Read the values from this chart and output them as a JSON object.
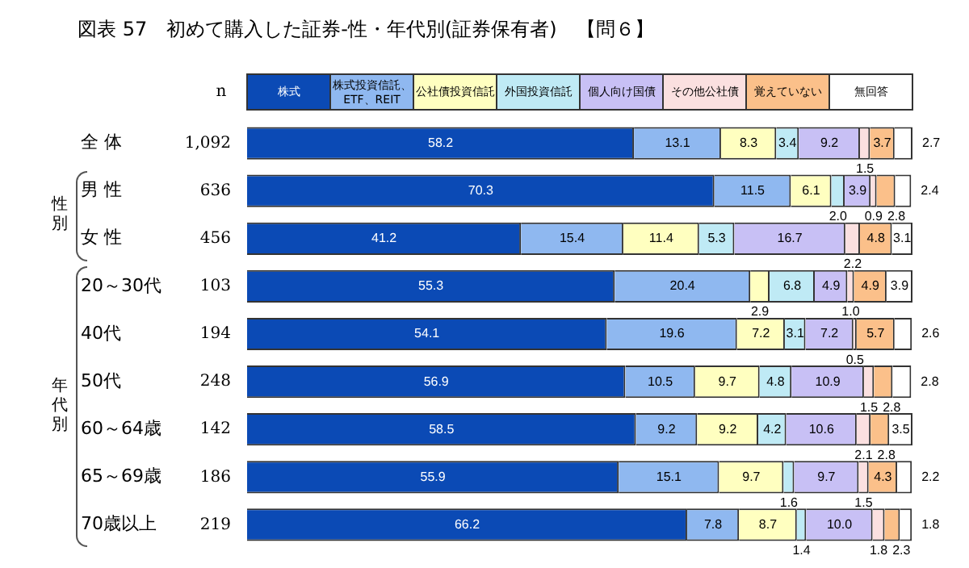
{
  "chart_data": {
    "type": "bar",
    "orientation": "horizontal",
    "stacked": true,
    "legend": "top",
    "title": "図表 57　初めて購入した証券-性・年代別(証券保有者)　【問６】",
    "categories": [
      "全 体",
      "男 性",
      "女 性",
      "20～30代",
      "40代",
      "50代",
      "60～64歳",
      "65～69歳",
      "70歳以上"
    ],
    "series": [
      {
        "name": "株式",
        "color": "#0b4ab5",
        "values": [
          58.2,
          70.3,
          41.2,
          55.3,
          54.1,
          56.9,
          58.5,
          55.9,
          66.2
        ],
        "value_labels": [
          "58.2",
          "70.3",
          "41.2",
          "55.3",
          "54.1",
          "56.9",
          "58.5",
          "55.9",
          "66.2"
        ]
      },
      {
        "name": "株式投資信託、ETF、REIT",
        "color": "#8fb8f0",
        "values": [
          13.1,
          11.5,
          15.4,
          20.4,
          19.6,
          10.5,
          9.2,
          15.1,
          7.8
        ],
        "value_labels": [
          "13.1",
          "11.5",
          "15.4",
          "20.4",
          "19.6",
          "10.5",
          "9.2",
          "15.1",
          "7.8"
        ]
      },
      {
        "name": "公社債投資信託",
        "color": "#ffffc0",
        "values": [
          8.3,
          6.1,
          11.4,
          2.9,
          7.2,
          9.7,
          9.2,
          9.7,
          8.7
        ],
        "value_labels": [
          "8.3",
          "6.1",
          "11.4",
          "2.9",
          "7.2",
          "9.7",
          "9.2",
          "9.7",
          "8.7"
        ]
      },
      {
        "name": "外国投資信託",
        "color": "#bfeaf5",
        "values": [
          3.4,
          2.0,
          5.3,
          6.8,
          3.1,
          4.8,
          4.2,
          1.6,
          1.4
        ],
        "value_labels": [
          "3.4",
          "2.0",
          "5.3",
          "6.8",
          "3.1",
          "4.8",
          "4.2",
          "1.6",
          "1.4"
        ]
      },
      {
        "name": "個人向け国債",
        "color": "#c8c0f5",
        "values": [
          9.2,
          3.9,
          16.7,
          4.9,
          7.2,
          10.9,
          10.6,
          9.7,
          10.0
        ],
        "value_labels": [
          "9.2",
          "3.9",
          "16.7",
          "4.9",
          "7.2",
          "10.9",
          "10.6",
          "9.7",
          "10.0"
        ]
      },
      {
        "name": "その他公社債",
        "color": "#fbe0e0",
        "values": [
          1.5,
          0.9,
          2.2,
          1.0,
          0.5,
          1.5,
          2.1,
          1.5,
          1.8
        ],
        "value_labels": [
          "1.5",
          "0.9",
          "2.2",
          "1.0",
          "0.5",
          "1.5",
          "2.1",
          "1.5",
          "1.8"
        ]
      },
      {
        "name": "覚えていない",
        "color": "#fbc08a",
        "values": [
          3.7,
          2.8,
          4.8,
          4.9,
          5.7,
          2.8,
          2.8,
          4.3,
          2.3
        ],
        "value_labels": [
          "3.7",
          "2.8",
          "4.8",
          "4.9",
          "5.7",
          "2.8",
          "2.8",
          "4.3",
          "2.3"
        ]
      },
      {
        "name": "無回答",
        "color": "#ffffff",
        "values": [
          2.7,
          2.4,
          3.1,
          3.9,
          2.6,
          2.8,
          3.5,
          2.2,
          1.8
        ],
        "value_labels": [
          "2.7",
          "2.4",
          "3.1",
          "3.9",
          "2.6",
          "2.8",
          "3.5",
          "2.2",
          "1.8"
        ]
      }
    ],
    "annotations": [
      "n",
      "1,092",
      "636",
      "456",
      "103",
      "194",
      "248",
      "142",
      "186",
      "219",
      "性別",
      "年代別"
    ]
  }
}
